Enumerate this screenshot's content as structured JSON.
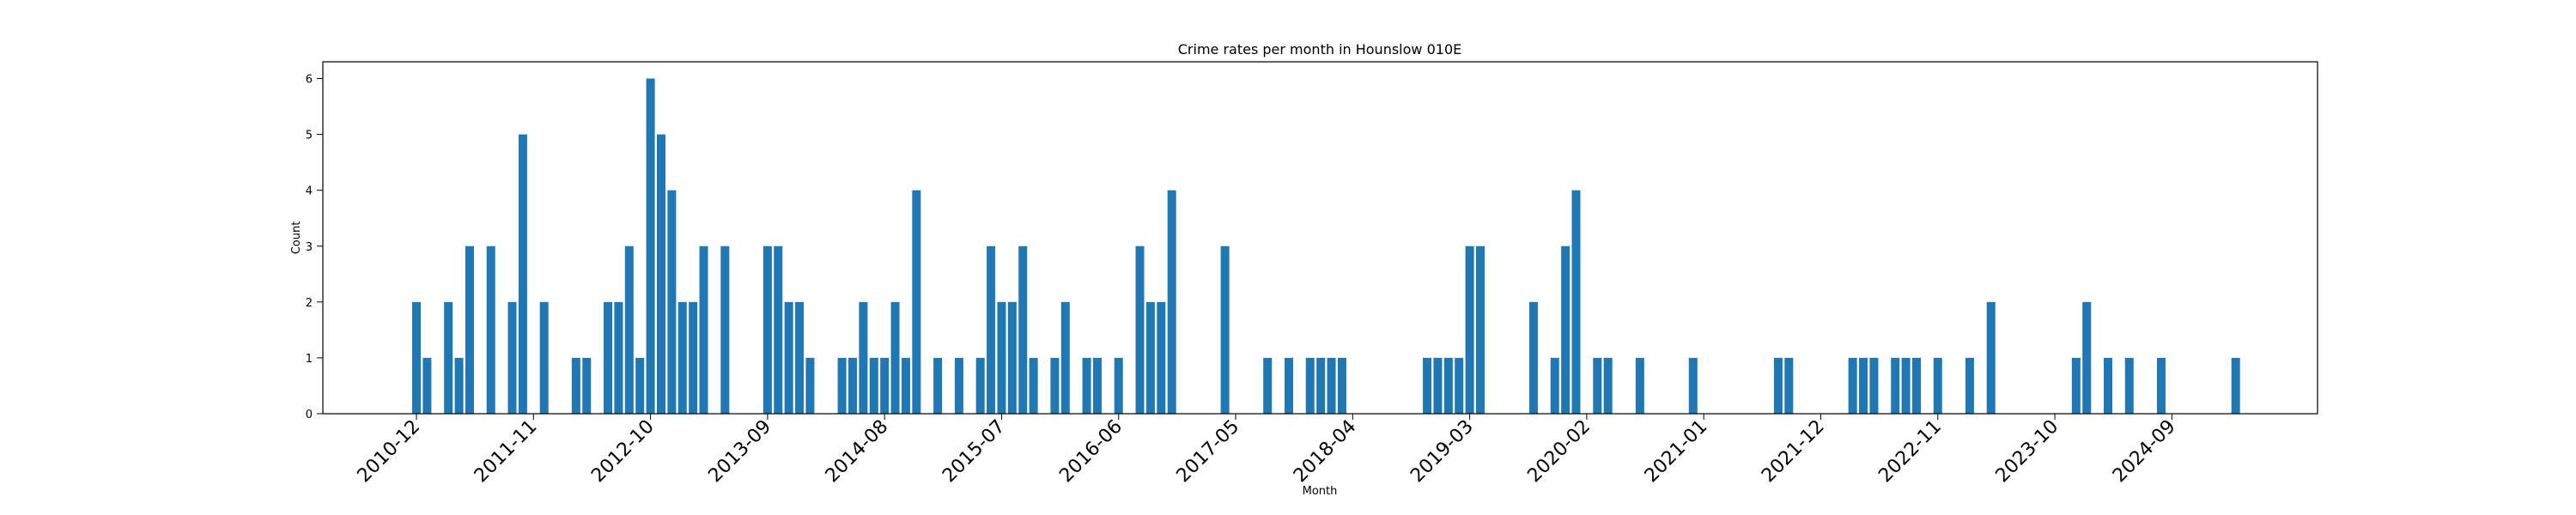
{
  "chart_data": {
    "type": "bar",
    "title": "Crime rates per month in Hounslow 010E",
    "xlabel": "Month",
    "ylabel": "Count",
    "ylim": [
      0,
      6.3
    ],
    "yticks": [
      0,
      1,
      2,
      3,
      4,
      5,
      6
    ],
    "xtick_labels": [
      "2010-12",
      "2011-11",
      "2012-10",
      "2013-09",
      "2014-08",
      "2015-07",
      "2016-06",
      "2017-05",
      "2018-04",
      "2019-03",
      "2020-02",
      "2021-01",
      "2021-12",
      "2022-11",
      "2023-10",
      "2024-09"
    ],
    "grid": false,
    "bar_color": "#1f77b4",
    "x": [
      "2010-12",
      "2011-01",
      "2011-03",
      "2011-04",
      "2011-05",
      "2011-07",
      "2011-09",
      "2011-10",
      "2011-12",
      "2012-03",
      "2012-04",
      "2012-06",
      "2012-07",
      "2012-08",
      "2012-09",
      "2012-10",
      "2012-11",
      "2012-12",
      "2013-01",
      "2013-02",
      "2013-03",
      "2013-05",
      "2013-09",
      "2013-10",
      "2013-11",
      "2013-12",
      "2014-01",
      "2014-04",
      "2014-05",
      "2014-06",
      "2014-07",
      "2014-08",
      "2014-09",
      "2014-10",
      "2014-11",
      "2015-01",
      "2015-03",
      "2015-05",
      "2015-06",
      "2015-07",
      "2015-08",
      "2015-09",
      "2015-10",
      "2015-12",
      "2016-01",
      "2016-03",
      "2016-04",
      "2016-06",
      "2016-08",
      "2016-09",
      "2016-10",
      "2016-11",
      "2017-04",
      "2017-08",
      "2017-10",
      "2017-12",
      "2018-01",
      "2018-02",
      "2018-03",
      "2018-11",
      "2018-12",
      "2019-01",
      "2019-02",
      "2019-03",
      "2019-04",
      "2019-09",
      "2019-11",
      "2019-12",
      "2020-01",
      "2020-03",
      "2020-04",
      "2020-07",
      "2020-12",
      "2021-08",
      "2021-09",
      "2022-03",
      "2022-04",
      "2022-05",
      "2022-07",
      "2022-08",
      "2022-09",
      "2022-11",
      "2023-02",
      "2023-04",
      "2023-12",
      "2024-01",
      "2024-03",
      "2024-05",
      "2024-08",
      "2025-03"
    ],
    "values": [
      2,
      1,
      2,
      1,
      3,
      3,
      2,
      5,
      2,
      1,
      1,
      2,
      2,
      3,
      1,
      6,
      5,
      4,
      2,
      2,
      3,
      3,
      3,
      3,
      2,
      2,
      1,
      1,
      1,
      2,
      1,
      1,
      2,
      1,
      4,
      1,
      1,
      1,
      3,
      2,
      2,
      3,
      1,
      1,
      2,
      1,
      1,
      1,
      3,
      2,
      2,
      4,
      3,
      1,
      1,
      1,
      1,
      1,
      1,
      1,
      1,
      1,
      1,
      3,
      3,
      2,
      1,
      3,
      4,
      1,
      1,
      1,
      1,
      1,
      1,
      1,
      1,
      1,
      1,
      1,
      1,
      1,
      1,
      2,
      1,
      2,
      1,
      1,
      1,
      1
    ]
  }
}
